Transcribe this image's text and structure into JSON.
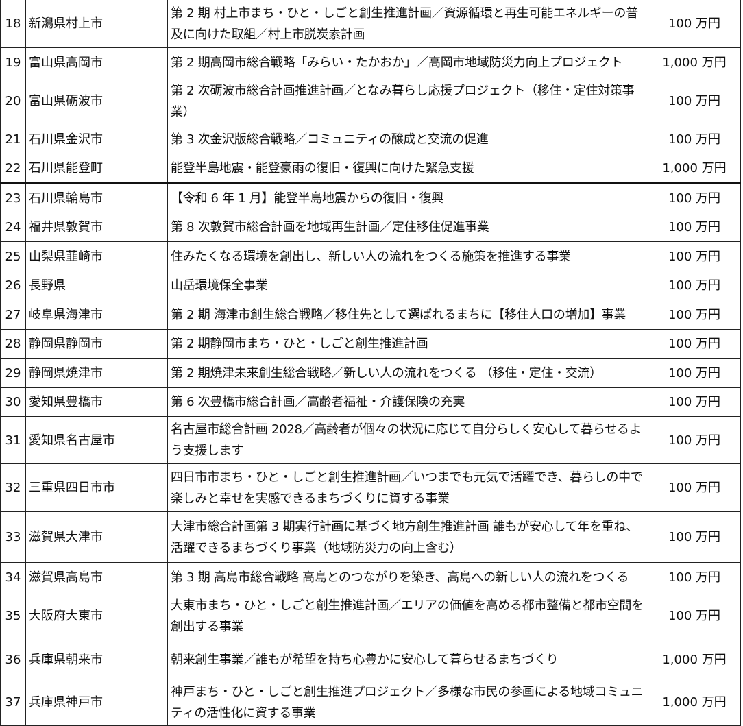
{
  "rows": [
    {
      "no": "18",
      "name": "新潟県村上市",
      "desc": "第 2 期 村上市まち・ひと・しごと創生推進計画／資源循環と再生可能エネルギーの普及に向けた取組／村上市脱炭素計画",
      "amount": "100 万円"
    },
    {
      "no": "19",
      "name": "富山県高岡市",
      "desc": "第 2 期高岡市総合戦略「みらい・たかおか」／高岡市地域防災力向上プロジェクト",
      "amount": "1,000 万円"
    },
    {
      "no": "20",
      "name": "富山県砺波市",
      "desc": "第 2 次砺波市総合計画推進計画／となみ暮らし応援プロジェクト（移住・定住対策事業）",
      "amount": "100 万円"
    },
    {
      "no": "21",
      "name": "石川県金沢市",
      "desc": "第 3 次金沢版総合戦略／コミュニティの醸成と交流の促進",
      "amount": "100 万円"
    },
    {
      "no": "22",
      "name": "石川県能登町",
      "desc": "能登半島地震・能登豪雨の復旧・復興に向けた緊急支援",
      "amount": "1,000 万円"
    },
    {
      "no": "23",
      "name": "石川県輪島市",
      "desc": "【令和 6 年 1 月】能登半島地震からの復旧・復興",
      "amount": "100 万円"
    },
    {
      "no": "24",
      "name": "福井県敦賀市",
      "desc": "第 8 次敦賀市総合計画を地域再生計画／定住移住促進事業",
      "amount": "100 万円"
    },
    {
      "no": "25",
      "name": "山梨県韮崎市",
      "desc": "住みたくなる環境を創出し、新しい人の流れをつくる施策を推進する事業",
      "amount": "100 万円"
    },
    {
      "no": "26",
      "name": "長野県",
      "desc": "山岳環境保全事業",
      "amount": "100 万円"
    },
    {
      "no": "27",
      "name": "岐阜県海津市",
      "desc": "第 2 期 海津市創生総合戦略／移住先として選ばれるまちに【移住人口の増加】事業",
      "amount": "100 万円"
    },
    {
      "no": "28",
      "name": "静岡県静岡市",
      "desc": "第 2 期静岡市まち・ひと・しごと創生推進計画",
      "amount": "100 万円"
    },
    {
      "no": "29",
      "name": "静岡県焼津市",
      "desc": "第 2 期焼津未来創生総合戦略／新しい人の流れをつくる （移住・定住・交流）",
      "amount": "100 万円"
    },
    {
      "no": "30",
      "name": "愛知県豊橋市",
      "desc": "第 6 次豊橋市総合計画／高齢者福祉・介護保険の充実",
      "amount": "100 万円"
    },
    {
      "no": "31",
      "name": "愛知県名古屋市",
      "desc": "名古屋市総合計画 2028／高齢者が個々の状況に応じて自分らしく安心して暮らせるよう支援します",
      "amount": "100 万円"
    },
    {
      "no": "32",
      "name": "三重県四日市市",
      "desc": "四日市市まち・ひと・しごと創生推進計画／いつまでも元気で活躍でき、暮らしの中で楽しみと幸せを実感できるまちづくりに資する事業",
      "amount": "100 万円"
    },
    {
      "no": "33",
      "name": "滋賀県大津市",
      "desc": "大津市総合計画第 3 期実行計画に基づく地方創生推進計画 誰もが安心して年を重ね、活躍できるまちづくり事業（地域防災力の向上含む）",
      "amount": "100 万円"
    },
    {
      "no": "34",
      "name": "滋賀県高島市",
      "desc": "第 3 期 高島市総合戦略 高島とのつながりを築き、高島への新しい人の流れをつくる",
      "amount": "100 万円"
    },
    {
      "no": "35",
      "name": "大阪府大東市",
      "desc": "大東市まち・ひと・しごと創生推進計画／エリアの価値を高める都市整備と都市空間を創出する事業",
      "amount": "100 万円"
    },
    {
      "no": "36",
      "name": "兵庫県朝来市",
      "desc": "朝来創生事業／誰もが希望を持ち心豊かに安心して暮らせるまちづくり",
      "amount": "1,000 万円"
    },
    {
      "no": "37",
      "name": "兵庫県神戸市",
      "desc": "神戸まち・ひと・しごと創生推進プロジェクト／多様な市民の参画による地域コミュニティの活性化に資する事業",
      "amount": "1,000 万円"
    }
  ]
}
